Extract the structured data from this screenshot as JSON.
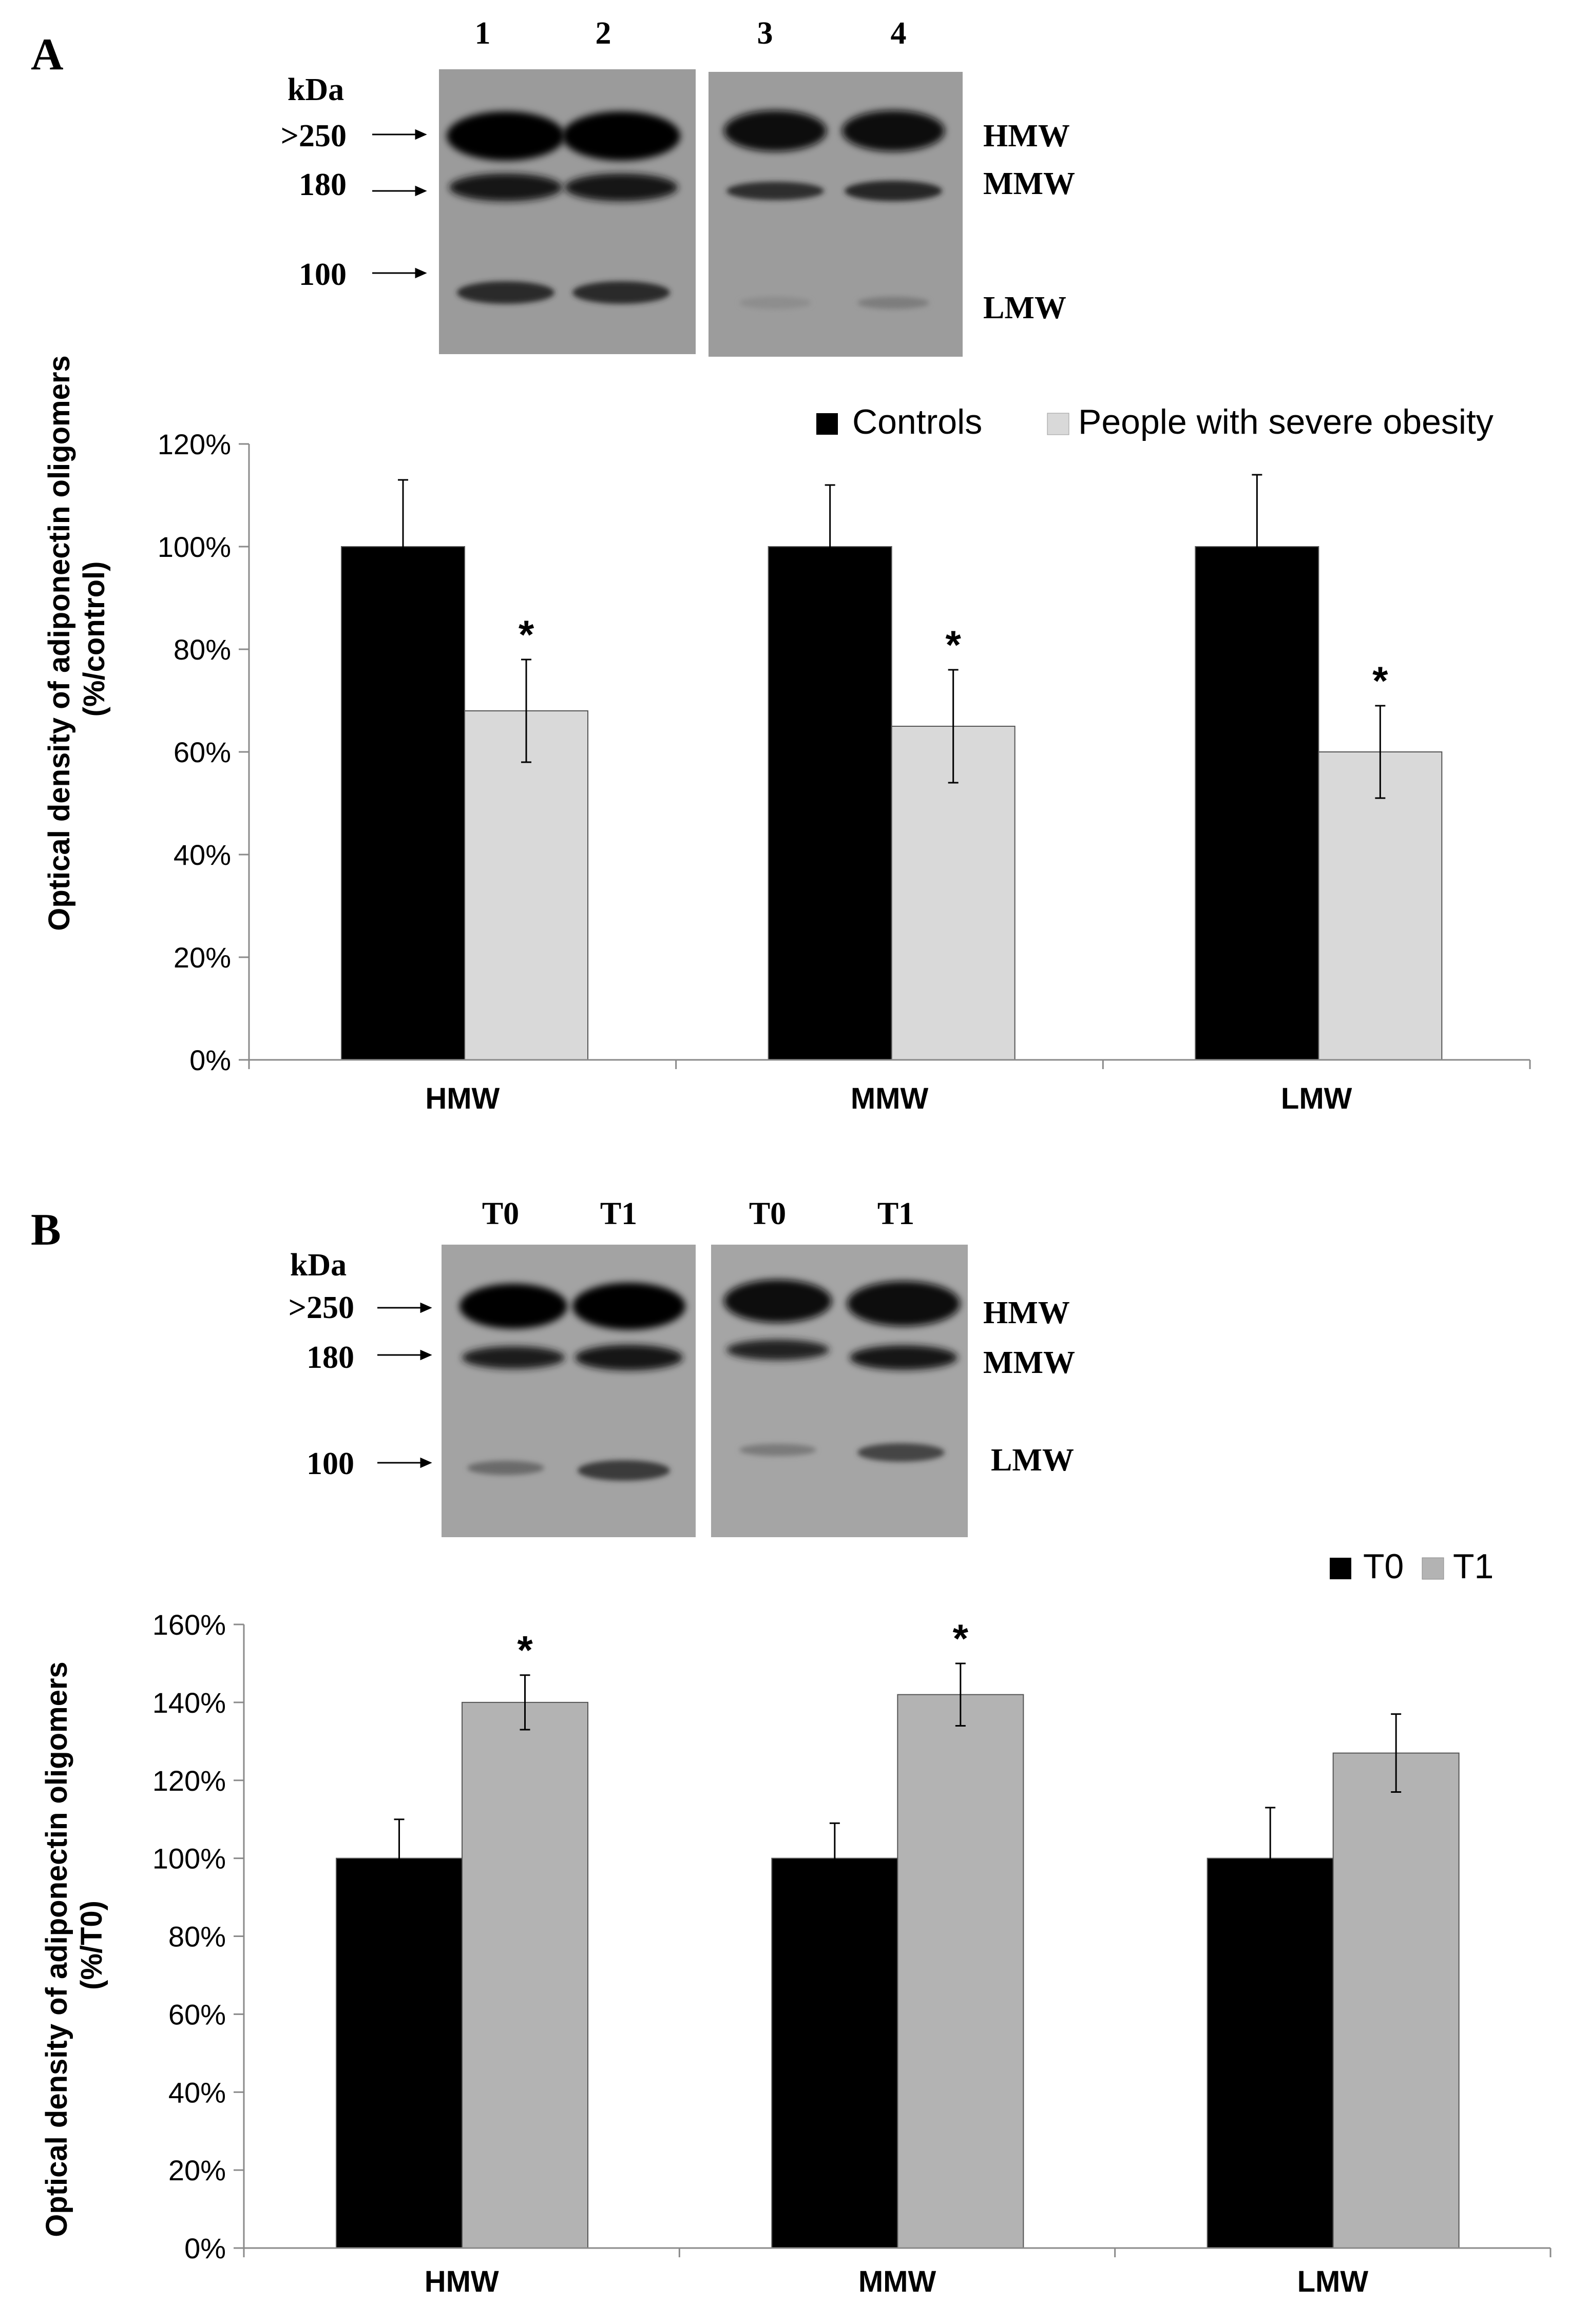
{
  "panels": [
    {
      "label": "A",
      "blot": {
        "lane_labels": [
          "1",
          "2",
          "3",
          "4"
        ],
        "unit": "kDa",
        "markers": [
          ">250",
          "180",
          "100"
        ],
        "bands": [
          "HMW",
          "MMW",
          "LMW"
        ]
      }
    },
    {
      "label": "B",
      "blot": {
        "lane_labels": [
          "T0",
          "T1",
          "T0",
          "T1"
        ],
        "unit": "kDa",
        "markers": [
          ">250",
          "180",
          "100"
        ],
        "bands": [
          "HMW",
          "MMW",
          "LMW"
        ]
      }
    }
  ],
  "chart_data": [
    {
      "type": "bar",
      "title": "",
      "xlabel": "",
      "ylabel": "Optical density of adiponectin oligomers (%/control)",
      "ylabel_lines": [
        "Optical density of adiponectin oligomers",
        "(%/control)"
      ],
      "categories": [
        "HMW",
        "MMW",
        "LMW"
      ],
      "ylim": [
        0,
        120
      ],
      "yticks": [
        0,
        20,
        40,
        60,
        80,
        100,
        120
      ],
      "ytick_labels": [
        "0%",
        "20%",
        "40%",
        "60%",
        "80%",
        "100%",
        "120%"
      ],
      "series": [
        {
          "name": "Controls",
          "color": "#000000",
          "values": [
            100,
            100,
            100
          ],
          "errors": [
            13,
            12,
            14
          ],
          "significance": [
            "",
            "",
            ""
          ]
        },
        {
          "name": "People with severe obesity",
          "color": "#d9d9d9",
          "values": [
            68,
            65,
            60
          ],
          "errors": [
            10,
            11,
            9
          ],
          "significance": [
            "*",
            "*",
            "*"
          ]
        }
      ],
      "legend_position": "top-right",
      "grid": false
    },
    {
      "type": "bar",
      "title": "",
      "xlabel": "",
      "ylabel": "Optical density of adiponectin oligomers (%/T0)",
      "ylabel_lines": [
        "Optical density of adiponectin oligomers",
        "(%/T0)"
      ],
      "categories": [
        "HMW",
        "MMW",
        "LMW"
      ],
      "ylim": [
        0,
        160
      ],
      "yticks": [
        0,
        20,
        40,
        60,
        80,
        100,
        120,
        140,
        160
      ],
      "ytick_labels": [
        "0%",
        "20%",
        "40%",
        "60%",
        "80%",
        "100%",
        "120%",
        "140%",
        "160%"
      ],
      "series": [
        {
          "name": "T0",
          "color": "#000000",
          "values": [
            100,
            100,
            100
          ],
          "errors": [
            10,
            9,
            13
          ],
          "significance": [
            "",
            "",
            ""
          ]
        },
        {
          "name": "T1",
          "color": "#b3b3b3",
          "values": [
            140,
            142,
            127
          ],
          "errors": [
            7,
            8,
            10
          ],
          "significance": [
            "*",
            "*",
            ""
          ]
        }
      ],
      "legend_position": "top-right",
      "grid": false
    }
  ]
}
